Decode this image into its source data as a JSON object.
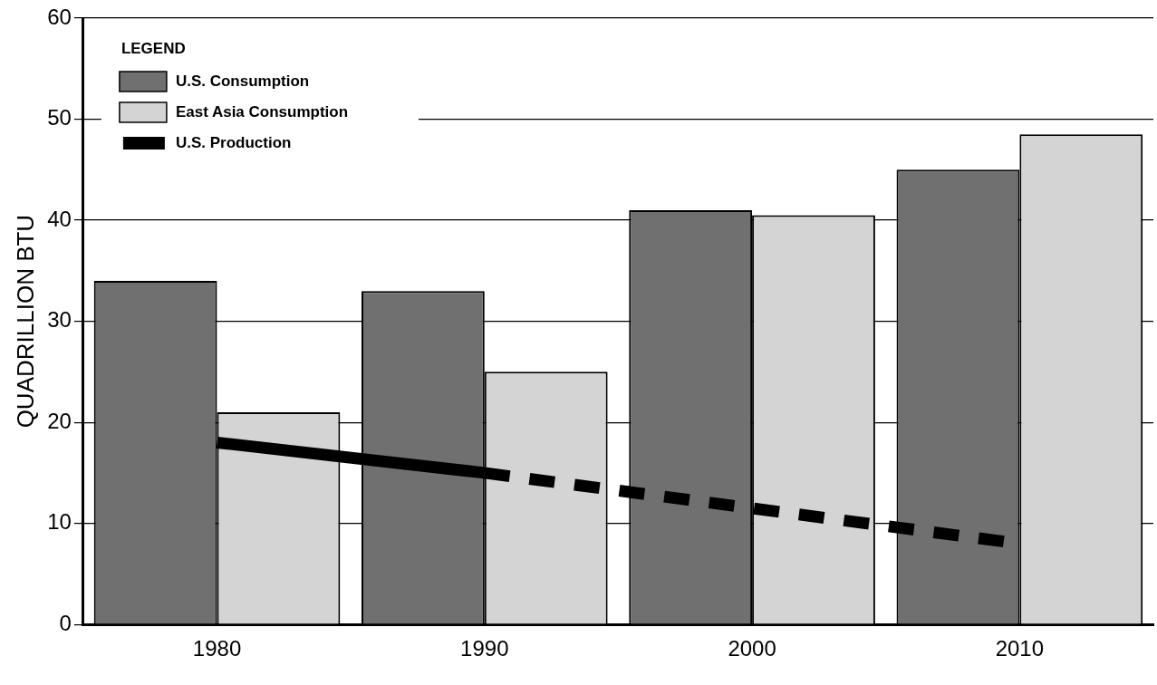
{
  "chart_data": {
    "type": "bar",
    "ylabel": "QUADRILLION BTU",
    "legend_title": "LEGEND",
    "categories": [
      "1980",
      "1990",
      "2000",
      "2010"
    ],
    "series": [
      {
        "name": "U.S. Consumption",
        "color": "#707070",
        "values": [
          34,
          33,
          41,
          45
        ]
      },
      {
        "name": "East Asia Consumption",
        "color": "#d4d4d4",
        "values": [
          21,
          25,
          40.5,
          48.5
        ]
      },
      {
        "name": "U.S. Production",
        "type": "line",
        "color": "#000000",
        "line_style": "solid",
        "values": [
          18,
          15,
          null,
          null
        ]
      },
      {
        "type": "line",
        "color": "#000000",
        "line_style": "dashed",
        "values": [
          null,
          15,
          11.5,
          8
        ]
      }
    ],
    "ylim": [
      0,
      60
    ],
    "yticks": [
      0,
      10,
      20,
      30,
      40,
      50,
      60
    ],
    "grid": "y",
    "legend": "top left"
  }
}
